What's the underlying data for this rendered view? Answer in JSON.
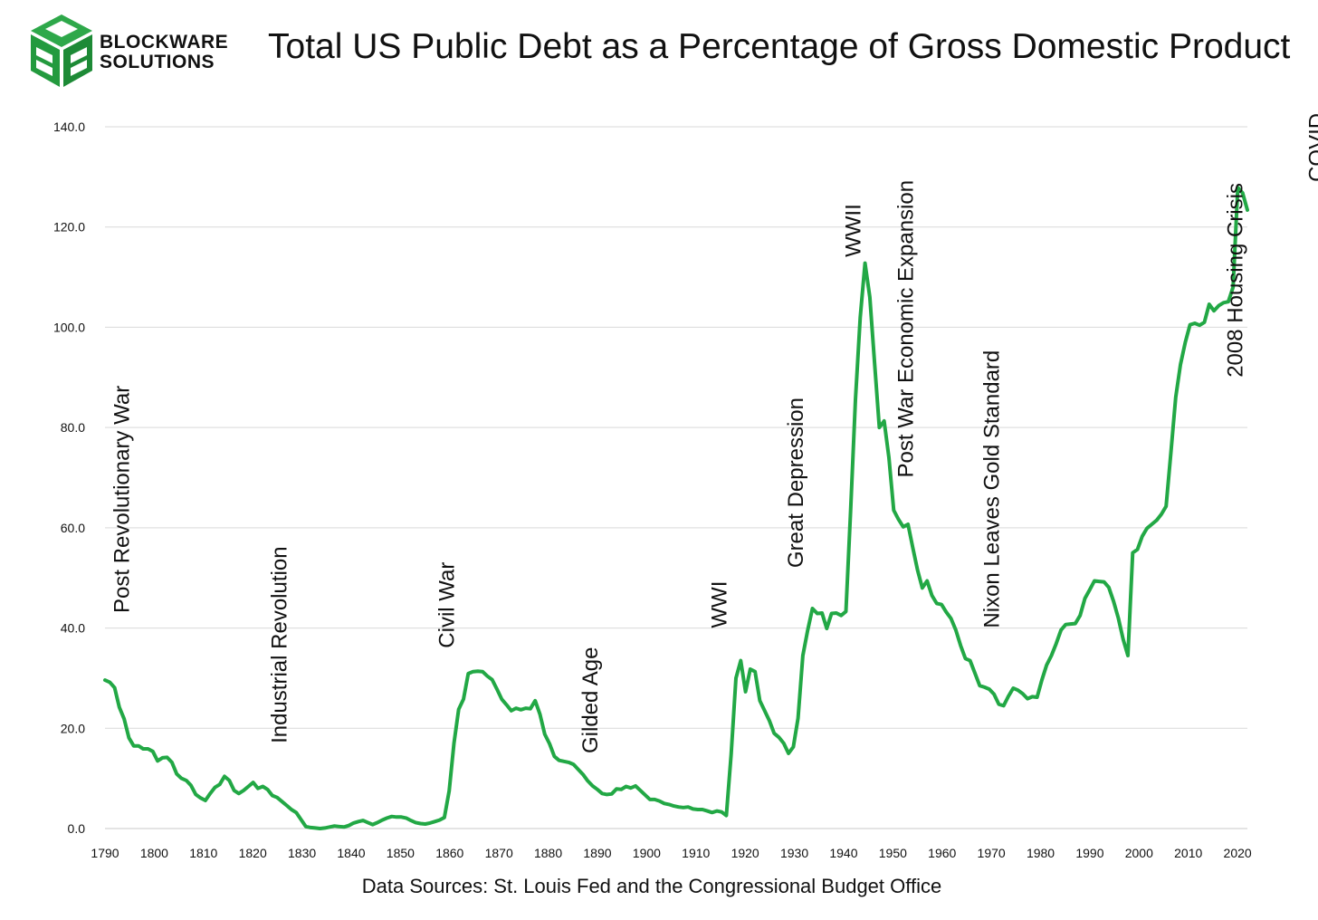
{
  "logo": {
    "line1": "BLOCKWARE",
    "line2": "SOLUTIONS",
    "color": "#2ea84a"
  },
  "title": "Total US Public Debt as a Percentage of Gross Domestic Product",
  "source": "Data Sources: St. Louis Fed and the Congressional Budget Office",
  "chart_data": {
    "type": "line",
    "title": "Total US Public Debt as a Percentage of Gross Domestic Product",
    "xlabel": "",
    "ylabel": "",
    "xlim": [
      1790,
      2022
    ],
    "ylim": [
      0,
      140
    ],
    "grid": true,
    "line_color": "#22a845",
    "y_ticks": [
      "0.0",
      "20.0",
      "40.0",
      "60.0",
      "80.0",
      "100.0",
      "120.0",
      "140.0"
    ],
    "x_ticks": [
      "1790",
      "1800",
      "1810",
      "1820",
      "1830",
      "1840",
      "1850",
      "1860",
      "1870",
      "1880",
      "1890",
      "1900",
      "1910",
      "1920",
      "1930",
      "1940",
      "1950",
      "1960",
      "1970",
      "1980",
      "1990",
      "2000",
      "2010",
      "2020"
    ],
    "series": [
      {
        "values": [
          [
            1790,
            29.6
          ],
          [
            1791,
            29.2
          ],
          [
            1792,
            28.1
          ],
          [
            1793,
            24.2
          ],
          [
            1794,
            21.9
          ],
          [
            1795,
            18.1
          ],
          [
            1796,
            16.5
          ],
          [
            1797,
            16.5
          ],
          [
            1798,
            15.9
          ],
          [
            1799,
            15.9
          ],
          [
            1800,
            15.4
          ],
          [
            1801,
            13.5
          ],
          [
            1802,
            14.1
          ],
          [
            1803,
            14.2
          ],
          [
            1804,
            13.2
          ],
          [
            1805,
            10.9
          ],
          [
            1806,
            10.0
          ],
          [
            1807,
            9.6
          ],
          [
            1808,
            8.6
          ],
          [
            1809,
            6.8
          ],
          [
            1810,
            6.1
          ],
          [
            1811,
            5.6
          ],
          [
            1812,
            7.0
          ],
          [
            1813,
            8.2
          ],
          [
            1814,
            8.8
          ],
          [
            1815,
            10.4
          ],
          [
            1816,
            9.6
          ],
          [
            1817,
            7.6
          ],
          [
            1818,
            7.0
          ],
          [
            1819,
            7.6
          ],
          [
            1820,
            8.4
          ],
          [
            1821,
            9.2
          ],
          [
            1822,
            8.0
          ],
          [
            1823,
            8.4
          ],
          [
            1824,
            7.8
          ],
          [
            1825,
            6.6
          ],
          [
            1826,
            6.2
          ],
          [
            1827,
            5.4
          ],
          [
            1828,
            4.6
          ],
          [
            1829,
            3.8
          ],
          [
            1830,
            3.2
          ],
          [
            1831,
            1.8
          ],
          [
            1832,
            0.4
          ],
          [
            1833,
            0.2
          ],
          [
            1834,
            0.1
          ],
          [
            1835,
            0.0
          ],
          [
            1836,
            0.1
          ],
          [
            1837,
            0.3
          ],
          [
            1838,
            0.5
          ],
          [
            1839,
            0.4
          ],
          [
            1840,
            0.3
          ],
          [
            1841,
            0.6
          ],
          [
            1842,
            1.1
          ],
          [
            1843,
            1.4
          ],
          [
            1844,
            1.6
          ],
          [
            1845,
            1.2
          ],
          [
            1846,
            0.8
          ],
          [
            1847,
            1.2
          ],
          [
            1848,
            1.7
          ],
          [
            1849,
            2.1
          ],
          [
            1850,
            2.4
          ],
          [
            1851,
            2.3
          ],
          [
            1852,
            2.3
          ],
          [
            1853,
            2.1
          ],
          [
            1854,
            1.6
          ],
          [
            1855,
            1.2
          ],
          [
            1856,
            1.0
          ],
          [
            1857,
            0.9
          ],
          [
            1858,
            1.1
          ],
          [
            1859,
            1.4
          ],
          [
            1860,
            1.7
          ],
          [
            1861,
            2.2
          ],
          [
            1862,
            7.5
          ],
          [
            1863,
            17.0
          ],
          [
            1864,
            23.8
          ],
          [
            1865,
            25.8
          ],
          [
            1866,
            30.9
          ],
          [
            1867,
            31.3
          ],
          [
            1868,
            31.4
          ],
          [
            1869,
            31.3
          ],
          [
            1870,
            30.4
          ],
          [
            1871,
            29.7
          ],
          [
            1872,
            27.8
          ],
          [
            1873,
            25.8
          ],
          [
            1874,
            24.7
          ],
          [
            1875,
            23.5
          ],
          [
            1876,
            24.0
          ],
          [
            1877,
            23.7
          ],
          [
            1878,
            24.0
          ],
          [
            1879,
            23.9
          ],
          [
            1880,
            25.5
          ],
          [
            1881,
            22.8
          ],
          [
            1882,
            18.8
          ],
          [
            1883,
            16.9
          ],
          [
            1884,
            14.4
          ],
          [
            1885,
            13.6
          ],
          [
            1886,
            13.4
          ],
          [
            1887,
            13.2
          ],
          [
            1888,
            12.8
          ],
          [
            1889,
            11.8
          ],
          [
            1890,
            10.8
          ],
          [
            1891,
            9.5
          ],
          [
            1892,
            8.5
          ],
          [
            1893,
            7.8
          ],
          [
            1894,
            7.0
          ],
          [
            1895,
            6.8
          ],
          [
            1896,
            6.9
          ],
          [
            1897,
            7.9
          ],
          [
            1898,
            7.8
          ],
          [
            1899,
            8.4
          ],
          [
            1900,
            8.1
          ],
          [
            1901,
            8.5
          ],
          [
            1902,
            7.6
          ],
          [
            1903,
            6.7
          ],
          [
            1904,
            5.8
          ],
          [
            1905,
            5.8
          ],
          [
            1906,
            5.5
          ],
          [
            1907,
            5.0
          ],
          [
            1908,
            4.8
          ],
          [
            1909,
            4.5
          ],
          [
            1910,
            4.3
          ],
          [
            1911,
            4.2
          ],
          [
            1912,
            4.3
          ],
          [
            1913,
            3.9
          ],
          [
            1914,
            3.8
          ],
          [
            1915,
            3.8
          ],
          [
            1916,
            3.5
          ],
          [
            1917,
            3.2
          ],
          [
            1918,
            3.5
          ],
          [
            1919,
            3.3
          ],
          [
            1920,
            2.6
          ],
          [
            1921,
            14.8
          ],
          [
            1922,
            30.0
          ],
          [
            1923,
            33.5
          ],
          [
            1924,
            27.3
          ],
          [
            1925,
            31.8
          ],
          [
            1926,
            31.3
          ],
          [
            1927,
            25.5
          ],
          [
            1928,
            23.5
          ],
          [
            1929,
            21.5
          ],
          [
            1930,
            19.0
          ],
          [
            1931,
            18.2
          ],
          [
            1932,
            17.0
          ],
          [
            1933,
            15.0
          ],
          [
            1934,
            16.3
          ],
          [
            1935,
            22.0
          ],
          [
            1936,
            34.5
          ],
          [
            1937,
            39.5
          ],
          [
            1938,
            43.9
          ],
          [
            1939,
            42.9
          ],
          [
            1940,
            43.0
          ],
          [
            1941,
            39.9
          ],
          [
            1942,
            42.9
          ],
          [
            1943,
            43.0
          ],
          [
            1944,
            42.5
          ],
          [
            1945,
            43.3
          ],
          [
            1946,
            63.5
          ],
          [
            1947,
            85.5
          ],
          [
            1948,
            102.0
          ],
          [
            1949,
            112.8
          ],
          [
            1950,
            106.0
          ],
          [
            1951,
            93.0
          ],
          [
            1952,
            80.0
          ],
          [
            1953,
            81.3
          ],
          [
            1954,
            74.0
          ],
          [
            1955,
            63.5
          ],
          [
            1956,
            61.7
          ],
          [
            1957,
            60.2
          ],
          [
            1958,
            60.7
          ],
          [
            1959,
            56.0
          ],
          [
            1960,
            51.5
          ],
          [
            1961,
            48.0
          ],
          [
            1962,
            49.4
          ],
          [
            1963,
            46.5
          ],
          [
            1964,
            44.9
          ],
          [
            1965,
            44.7
          ],
          [
            1966,
            43.2
          ],
          [
            1967,
            41.9
          ],
          [
            1968,
            39.6
          ],
          [
            1969,
            36.5
          ],
          [
            1970,
            33.9
          ],
          [
            1971,
            33.5
          ],
          [
            1972,
            31.0
          ],
          [
            1973,
            28.5
          ],
          [
            1974,
            28.2
          ],
          [
            1975,
            27.8
          ],
          [
            1976,
            26.8
          ],
          [
            1977,
            24.8
          ],
          [
            1978,
            24.5
          ],
          [
            1979,
            26.4
          ],
          [
            1980,
            28.0
          ],
          [
            1981,
            27.6
          ],
          [
            1982,
            26.9
          ],
          [
            1983,
            25.9
          ],
          [
            1984,
            26.3
          ],
          [
            1985,
            26.2
          ],
          [
            1986,
            29.6
          ],
          [
            1987,
            32.6
          ],
          [
            1988,
            34.5
          ],
          [
            1989,
            36.9
          ],
          [
            1990,
            39.6
          ],
          [
            1991,
            40.7
          ],
          [
            1992,
            40.8
          ],
          [
            1993,
            40.9
          ],
          [
            1994,
            42.5
          ],
          [
            1995,
            45.9
          ],
          [
            1996,
            47.6
          ],
          [
            1997,
            49.4
          ],
          [
            1998,
            49.3
          ],
          [
            1999,
            49.2
          ],
          [
            2000,
            48.1
          ],
          [
            2001,
            45.3
          ],
          [
            2002,
            42.0
          ],
          [
            2003,
            37.8
          ],
          [
            2004,
            34.5
          ],
          [
            2005,
            55.0
          ],
          [
            2006,
            55.7
          ],
          [
            2007,
            58.3
          ],
          [
            2008,
            59.9
          ],
          [
            2009,
            60.7
          ],
          [
            2010,
            61.5
          ],
          [
            2011,
            62.7
          ],
          [
            2012,
            64.3
          ],
          [
            2013,
            75.0
          ],
          [
            2014,
            86.0
          ],
          [
            2015,
            92.6
          ],
          [
            2016,
            97.0
          ],
          [
            2017,
            100.5
          ],
          [
            2018,
            100.8
          ],
          [
            2019,
            100.4
          ],
          [
            2020,
            101.0
          ],
          [
            2021,
            104.6
          ],
          [
            2022,
            103.3
          ],
          [
            2023,
            104.3
          ],
          [
            2024,
            104.9
          ],
          [
            2025,
            105.1
          ],
          [
            2026,
            108.0
          ],
          [
            2027,
            127.9
          ],
          [
            2028,
            126.8
          ],
          [
            2029,
            123.4
          ]
        ]
      }
    ],
    "annotations": [
      {
        "text": "Post Revolutionary War",
        "x": 1795,
        "y": 43
      },
      {
        "text": "Industrial Revolution",
        "x": 1828,
        "y": 17
      },
      {
        "text": "Civil War",
        "x": 1863,
        "y": 36
      },
      {
        "text": "Gilded Age",
        "x": 1893,
        "y": 15
      },
      {
        "text": "WWI",
        "x": 1920,
        "y": 40
      },
      {
        "text": "Great Depression",
        "x": 1936,
        "y": 52
      },
      {
        "text": "WWII",
        "x": 1948,
        "y": 114
      },
      {
        "text": "Post War Economic Expansion",
        "x": 1959,
        "y": 70
      },
      {
        "text": "Nixon Leaves Gold Standard",
        "x": 1977,
        "y": 40
      },
      {
        "text": "2008 Housing Crisis",
        "x": 2028,
        "y": 90
      },
      {
        "text": "COVID",
        "x": 2045,
        "y": 129
      }
    ]
  }
}
